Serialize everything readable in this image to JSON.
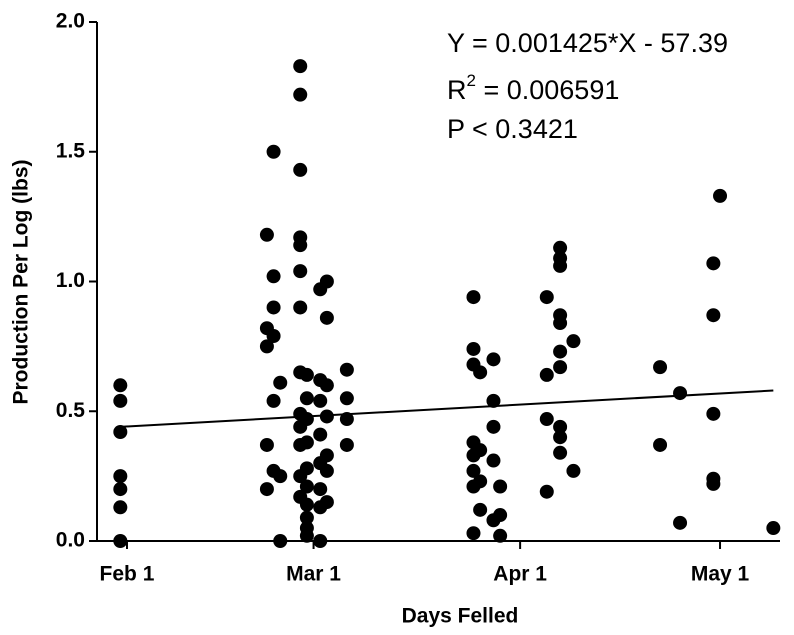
{
  "chart_data": {
    "type": "scatter",
    "x_label": "Days  Felled",
    "y_label": "Production Per Log (lbs)",
    "annotations": {
      "equation": "Y = 0.001425*X - 57.39",
      "r_base": "R",
      "r_sup": "2",
      "r_rest": " = 0.006591",
      "p": "P < 0.3421"
    },
    "color": "#000000",
    "x": [
      31,
      31,
      31,
      31,
      31,
      31,
      31,
      53,
      53,
      53,
      53,
      53,
      54,
      54,
      54,
      54,
      54,
      54,
      55,
      55,
      55,
      58,
      58,
      58,
      58,
      58,
      58,
      58,
      58,
      58,
      58,
      58,
      58,
      58,
      59,
      59,
      59,
      59,
      59,
      59,
      59,
      59,
      59,
      59,
      61,
      61,
      61,
      61,
      61,
      61,
      61,
      61,
      62,
      62,
      62,
      62,
      62,
      62,
      62,
      65,
      65,
      65,
      65,
      84,
      84,
      84,
      84,
      84,
      84,
      84,
      84,
      85,
      85,
      85,
      85,
      87,
      87,
      87,
      87,
      87,
      88,
      88,
      88,
      95,
      95,
      95,
      95,
      97,
      97,
      97,
      97,
      97,
      97,
      97,
      97,
      97,
      97,
      99,
      99,
      112,
      112,
      115,
      115,
      120,
      120,
      120,
      120,
      120,
      121,
      129
    ],
    "values": [
      0.6,
      0.54,
      0.42,
      0.25,
      0.2,
      0.13,
      0.0,
      1.18,
      0.82,
      0.75,
      0.37,
      0.2,
      1.5,
      1.02,
      0.9,
      0.79,
      0.54,
      0.27,
      0.61,
      0.25,
      0.0,
      1.83,
      1.72,
      1.43,
      1.17,
      1.14,
      1.04,
      0.9,
      0.65,
      0.49,
      0.44,
      0.37,
      0.25,
      0.17,
      0.64,
      0.55,
      0.47,
      0.38,
      0.28,
      0.21,
      0.14,
      0.09,
      0.05,
      0.02,
      0.97,
      0.62,
      0.54,
      0.41,
      0.3,
      0.2,
      0.13,
      0.0,
      1.0,
      0.86,
      0.6,
      0.48,
      0.33,
      0.27,
      0.15,
      0.66,
      0.55,
      0.47,
      0.37,
      0.94,
      0.74,
      0.68,
      0.38,
      0.33,
      0.27,
      0.21,
      0.03,
      0.65,
      0.35,
      0.23,
      0.12,
      0.7,
      0.54,
      0.44,
      0.31,
      0.08,
      0.21,
      0.1,
      0.02,
      0.94,
      0.64,
      0.47,
      0.19,
      1.13,
      1.09,
      1.06,
      0.87,
      0.84,
      0.73,
      0.67,
      0.44,
      0.4,
      0.34,
      0.77,
      0.27,
      0.67,
      0.37,
      0.57,
      0.07,
      0.87,
      0.49,
      0.24,
      0.22,
      1.07,
      1.33,
      0.05
    ],
    "fit": {
      "x": [
        31,
        129
      ],
      "values": [
        0.44,
        0.58
      ]
    },
    "xlim": [
      27.5,
      130
    ],
    "xticks": [
      {
        "value": 32,
        "label": "Feb 1"
      },
      {
        "value": 60,
        "label": "Mar 1"
      },
      {
        "value": 91,
        "label": "Apr 1"
      },
      {
        "value": 121,
        "label": "May 1"
      }
    ],
    "ylim": [
      0,
      2
    ],
    "yticks": [
      {
        "value": 0,
        "label": "0.0"
      },
      0.5,
      {
        "value": 1,
        "label": "1.0"
      },
      1.5,
      {
        "value": 2,
        "label": "2.0"
      }
    ]
  }
}
